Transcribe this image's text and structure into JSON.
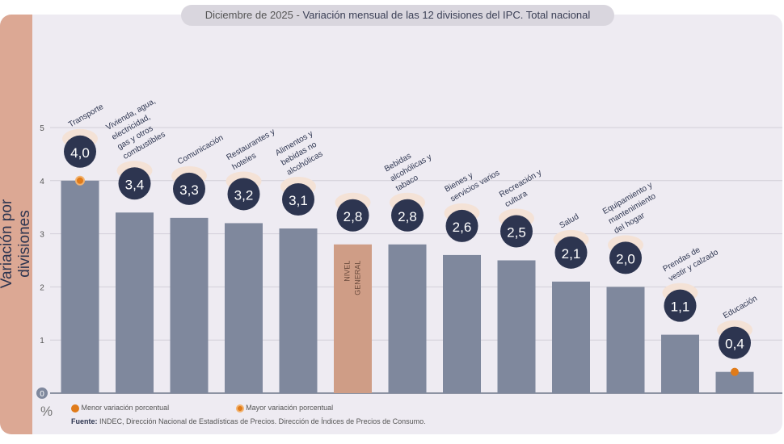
{
  "title": {
    "prefix": "Diciembre de 2025 - ",
    "main": "Variación mensual de las 12 divisiones del IPC. Total nacional"
  },
  "chart_data": {
    "type": "bar",
    "ylabel": "Variación por divisiones",
    "unit": "%",
    "ylim": [
      0,
      5
    ],
    "yticks": [
      "0",
      "1",
      "2",
      "3",
      "4",
      "5"
    ],
    "grid": true,
    "categories": [
      "Transporte",
      "Vivienda, agua, electricidad, gas y otros combustibles",
      "Comunicación",
      "Restaurantes y hoteles",
      "Alimentos y bebidas no alcohólicas",
      "NIVEL GENERAL",
      "Bebidas alcohólicas y tabaco",
      "Bienes y servicios varios",
      "Recreación y cultura",
      "Salud",
      "Equipamiento y mantenimiento del hogar",
      "Prendas de vestir y calzado",
      "Educación"
    ],
    "values": [
      4.0,
      3.4,
      3.3,
      3.2,
      3.1,
      2.8,
      2.8,
      2.6,
      2.5,
      2.1,
      2.0,
      1.1,
      0.4
    ],
    "value_labels": [
      "4,0",
      "3,4",
      "3,3",
      "3,2",
      "3,1",
      "2,8",
      "2,8",
      "2,6",
      "2,5",
      "2,1",
      "2,0",
      "1,1",
      "0,4"
    ],
    "highlight": {
      "max_index": 0,
      "min_index": 12,
      "general_index": 5
    },
    "colors": {
      "bar": "#7f889d",
      "general": "#cf9d86",
      "badge": "#2d3550",
      "marker": "#e07b1a"
    },
    "legend": {
      "min": "Menor variación porcentual",
      "max": "Mayor variación porcentual"
    }
  },
  "source": {
    "label": "Fuente:",
    "text": " INDEC, Dirección Nacional de Estadísticas de Precios. Dirección de Índices de Precios de Consumo."
  }
}
